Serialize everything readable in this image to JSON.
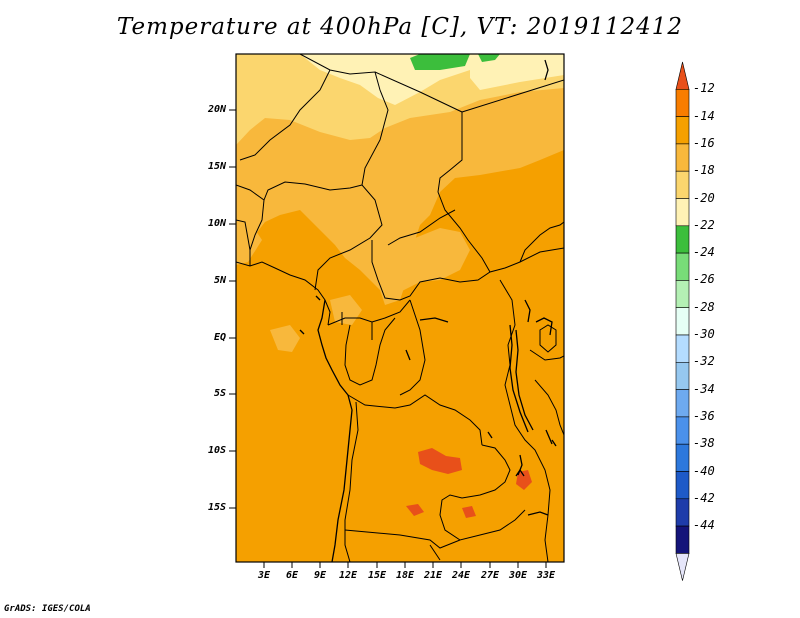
{
  "title": "Temperature at 400hPa [C], VT: 2019112412",
  "credit": "GrADS: IGES/COLA",
  "map": {
    "y_ticks": [
      "20N",
      "15N",
      "10N",
      "5N",
      "EQ",
      "5S",
      "10S",
      "15S"
    ],
    "x_ticks": [
      "3E",
      "6E",
      "9E",
      "12E",
      "15E",
      "18E",
      "21E",
      "24E",
      "27E",
      "30E",
      "33E"
    ]
  },
  "colorbar": {
    "labels": [
      "-12",
      "-14",
      "-16",
      "-18",
      "-20",
      "-22",
      "-24",
      "-26",
      "-28",
      "-30",
      "-32",
      "-34",
      "-36",
      "-38",
      "-40",
      "-42",
      "-44"
    ],
    "colors": [
      "#e8501a",
      "#f87d00",
      "#f5a000",
      "#f8b83c",
      "#fbd66e",
      "#fff2b5",
      "#3cbe3c",
      "#78dc78",
      "#b4f0b4",
      "#e6fff5",
      "#b4dcff",
      "#96c8f0",
      "#6eaaf0",
      "#4b91eb",
      "#2d78dc",
      "#1e5ac8",
      "#1e3caa",
      "#14147a",
      "#e6e6fa"
    ]
  },
  "chart_data": {
    "type": "heatmap",
    "title": "Temperature at 400hPa [C], VT: 2019112412",
    "xlabel": "",
    "ylabel": "",
    "x_ticks": [
      "3E",
      "6E",
      "9E",
      "12E",
      "15E",
      "18E",
      "21E",
      "24E",
      "27E",
      "30E",
      "33E"
    ],
    "y_ticks": [
      "20N",
      "15N",
      "10N",
      "5N",
      "EQ",
      "5S",
      "10S",
      "15S"
    ],
    "colorbar_levels": [
      -12,
      -14,
      -16,
      -18,
      -20,
      -22,
      -24,
      -26,
      -28,
      -30,
      -32,
      -34,
      -36,
      -38,
      -40,
      -42,
      -44
    ],
    "dominant_range": [
      -16,
      -14
    ],
    "warm_patches_range": [
      -14,
      -12
    ],
    "cool_north_range": [
      -22,
      -18
    ],
    "coldest_patch_range": [
      -26,
      -24
    ]
  }
}
